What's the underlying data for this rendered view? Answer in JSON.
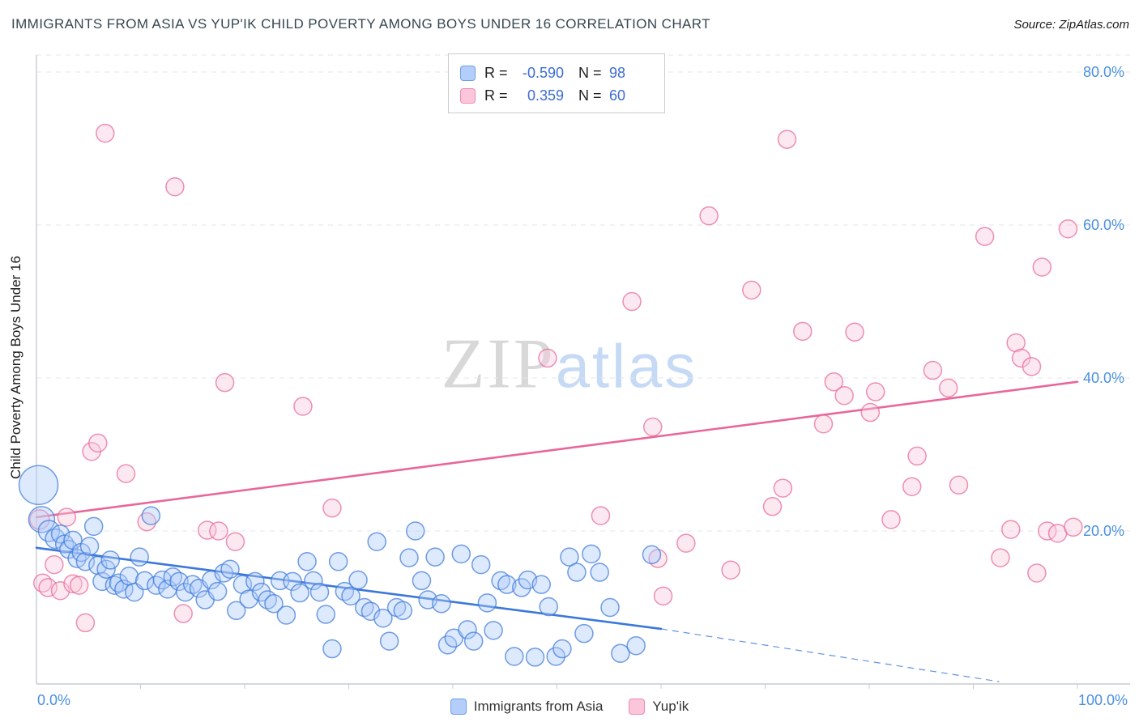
{
  "header": {
    "title": "IMMIGRANTS FROM ASIA VS YUP'IK CHILD POVERTY AMONG BOYS UNDER 16 CORRELATION CHART",
    "source": "Source: ZipAtlas.com"
  },
  "watermark": {
    "zip": "ZIP",
    "atlas": "atlas"
  },
  "legend": {
    "r_label": "R =",
    "n_label": "N =",
    "rows": [
      {
        "r": "-0.590",
        "n": "98"
      },
      {
        "r": "0.359",
        "n": "60"
      }
    ]
  },
  "chart_data": {
    "type": "scatter",
    "title": "IMMIGRANTS FROM ASIA VS YUP'IK CHILD POVERTY AMONG BOYS UNDER 16 CORRELATION CHART",
    "xlabel": "",
    "ylabel": "Child Poverty Among Boys Under 16",
    "x_axis": {
      "min": 0,
      "max": 105,
      "tick_interval": 10,
      "labels": [
        {
          "value": 0,
          "text": "0.0%"
        },
        {
          "value": 100,
          "text": "100.0%"
        }
      ]
    },
    "y_axis": {
      "min": 0,
      "max": 83,
      "gridlines": [
        20,
        40,
        60,
        80
      ],
      "labels": [
        "20.0%",
        "40.0%",
        "60.0%",
        "80.0%"
      ]
    },
    "series": [
      {
        "name": "Immigrants from Asia",
        "R": -0.59,
        "N": 98,
        "color": "#3b78d9",
        "fill": "#aecbfa",
        "trend": {
          "solid": [
            [
              0,
              17.8
            ],
            [
              60,
              7.2
            ]
          ],
          "dashed": [
            [
              60,
              7.2
            ],
            [
              92.5,
              0.3
            ]
          ]
        },
        "points": [
          [
            0.2,
            26,
            24
          ],
          [
            0.5,
            21.5,
            16
          ],
          [
            1.2,
            20,
            13
          ],
          [
            1.8,
            19,
            12
          ],
          [
            2.3,
            19.6
          ],
          [
            2.7,
            18.3
          ],
          [
            3.1,
            17.6
          ],
          [
            3.5,
            18.8
          ],
          [
            3.9,
            16.4
          ],
          [
            4.3,
            17.2
          ],
          [
            4.7,
            16.0
          ],
          [
            5.1,
            18.0
          ],
          [
            5.5,
            20.6
          ],
          [
            5.9,
            15.5
          ],
          [
            6.3,
            13.4
          ],
          [
            6.7,
            15.0
          ],
          [
            7.1,
            16.2
          ],
          [
            7.5,
            12.9
          ],
          [
            7.9,
            13.2
          ],
          [
            8.4,
            12.4
          ],
          [
            8.9,
            14.1
          ],
          [
            9.4,
            12.0
          ],
          [
            9.9,
            16.6
          ],
          [
            10.4,
            13.5
          ],
          [
            11.0,
            22.0
          ],
          [
            11.5,
            12.9
          ],
          [
            12.1,
            13.6
          ],
          [
            12.6,
            12.4
          ],
          [
            13.1,
            14.0
          ],
          [
            13.7,
            13.4
          ],
          [
            14.3,
            12.0
          ],
          [
            15.0,
            13.0
          ],
          [
            15.6,
            12.5
          ],
          [
            16.2,
            11.0
          ],
          [
            16.8,
            13.6
          ],
          [
            17.4,
            12.1
          ],
          [
            18.0,
            14.5
          ],
          [
            18.6,
            15.0
          ],
          [
            19.2,
            9.6
          ],
          [
            19.8,
            13.0
          ],
          [
            20.4,
            11.1
          ],
          [
            21.0,
            13.4
          ],
          [
            21.6,
            12.0
          ],
          [
            22.2,
            11.0
          ],
          [
            22.8,
            10.5
          ],
          [
            23.4,
            13.5
          ],
          [
            24.0,
            9.0
          ],
          [
            24.6,
            13.4
          ],
          [
            25.3,
            11.9
          ],
          [
            26.0,
            16.0
          ],
          [
            26.6,
            13.5
          ],
          [
            27.2,
            12.0
          ],
          [
            27.8,
            9.1
          ],
          [
            28.4,
            4.6
          ],
          [
            29.0,
            16.0
          ],
          [
            29.6,
            12.1
          ],
          [
            30.2,
            11.5
          ],
          [
            30.9,
            13.6
          ],
          [
            31.5,
            10.0
          ],
          [
            32.1,
            9.5
          ],
          [
            32.7,
            18.6
          ],
          [
            33.3,
            8.6
          ],
          [
            33.9,
            5.6
          ],
          [
            34.6,
            10.0
          ],
          [
            35.2,
            9.6
          ],
          [
            35.8,
            16.5
          ],
          [
            36.4,
            20.0
          ],
          [
            37.0,
            13.5
          ],
          [
            37.6,
            11.0
          ],
          [
            38.3,
            16.6
          ],
          [
            38.9,
            10.5
          ],
          [
            39.5,
            5.1
          ],
          [
            40.1,
            6.0
          ],
          [
            40.8,
            17.0
          ],
          [
            41.4,
            7.1
          ],
          [
            42.0,
            5.6
          ],
          [
            42.7,
            15.6
          ],
          [
            43.3,
            10.6
          ],
          [
            43.9,
            7.0
          ],
          [
            44.6,
            13.5
          ],
          [
            45.2,
            13.0
          ],
          [
            45.9,
            3.6
          ],
          [
            46.6,
            12.6
          ],
          [
            47.2,
            13.6
          ],
          [
            47.9,
            3.5
          ],
          [
            48.5,
            13.0
          ],
          [
            49.2,
            10.1
          ],
          [
            49.9,
            3.6
          ],
          [
            50.5,
            4.6
          ],
          [
            51.2,
            16.6
          ],
          [
            51.9,
            14.6
          ],
          [
            52.6,
            6.6
          ],
          [
            53.3,
            17.0
          ],
          [
            54.1,
            14.6
          ],
          [
            55.1,
            10.0
          ],
          [
            56.1,
            4.0
          ],
          [
            57.6,
            5.0
          ],
          [
            59.1,
            16.9
          ]
        ]
      },
      {
        "name": "Yup'ik",
        "R": 0.359,
        "N": 60,
        "color": "#e8679a",
        "fill": "#f9c8da",
        "trend": {
          "solid": [
            [
              0,
              21.8
            ],
            [
              100,
              39.5
            ]
          ]
        },
        "points": [
          [
            0.3,
            21.5,
            12
          ],
          [
            0.6,
            13.2
          ],
          [
            1.1,
            12.6
          ],
          [
            1.7,
            15.6
          ],
          [
            2.3,
            12.2
          ],
          [
            2.9,
            21.8
          ],
          [
            3.5,
            13.1
          ],
          [
            4.1,
            12.9
          ],
          [
            4.7,
            8.0
          ],
          [
            5.3,
            30.4
          ],
          [
            5.9,
            31.5
          ],
          [
            6.6,
            72.0
          ],
          [
            8.6,
            27.5
          ],
          [
            10.6,
            21.2
          ],
          [
            13.3,
            65.0
          ],
          [
            14.1,
            9.2
          ],
          [
            16.4,
            20.1
          ],
          [
            17.5,
            20.0
          ],
          [
            18.1,
            39.4
          ],
          [
            19.1,
            18.6
          ],
          [
            25.6,
            36.3
          ],
          [
            28.4,
            23.0
          ],
          [
            49.1,
            42.6
          ],
          [
            54.2,
            22.0
          ],
          [
            57.2,
            50.0
          ],
          [
            59.2,
            33.6
          ],
          [
            59.7,
            16.4
          ],
          [
            60.2,
            11.5
          ],
          [
            62.4,
            18.4
          ],
          [
            64.6,
            61.2
          ],
          [
            66.7,
            14.9
          ],
          [
            68.7,
            51.5
          ],
          [
            70.7,
            23.2
          ],
          [
            71.7,
            25.6
          ],
          [
            72.1,
            71.2
          ],
          [
            73.6,
            46.1
          ],
          [
            75.6,
            34.0
          ],
          [
            76.6,
            39.5
          ],
          [
            77.6,
            37.7
          ],
          [
            78.6,
            46.0
          ],
          [
            80.1,
            35.5
          ],
          [
            80.6,
            38.2
          ],
          [
            82.1,
            21.5
          ],
          [
            84.1,
            25.8
          ],
          [
            84.6,
            29.8
          ],
          [
            86.1,
            41.0
          ],
          [
            87.6,
            38.7
          ],
          [
            88.6,
            26.0
          ],
          [
            91.1,
            58.5
          ],
          [
            92.6,
            16.5
          ],
          [
            93.6,
            20.2
          ],
          [
            94.1,
            44.6
          ],
          [
            94.6,
            42.6
          ],
          [
            95.6,
            41.5
          ],
          [
            96.1,
            14.5
          ],
          [
            96.6,
            54.5
          ],
          [
            97.1,
            20.0
          ],
          [
            98.1,
            19.7
          ],
          [
            99.1,
            59.5
          ],
          [
            99.6,
            20.5
          ]
        ]
      }
    ],
    "style": {
      "gridline_color": "#e3e6e8",
      "axis_color": "#c6ccd0",
      "tick_label_color": "#4a90e2"
    }
  }
}
